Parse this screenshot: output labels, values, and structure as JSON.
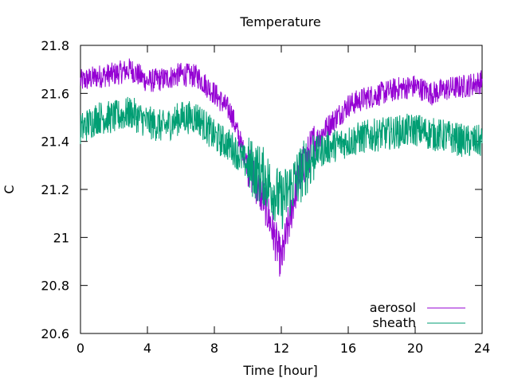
{
  "chart_data": {
    "type": "line",
    "title": "Temperature",
    "xlabel": "Time [hour]",
    "ylabel": "C",
    "xlim": [
      0,
      24
    ],
    "ylim": [
      20.6,
      21.8
    ],
    "x_ticks": [
      0,
      4,
      8,
      12,
      16,
      20,
      24
    ],
    "x_tick_labels": [
      "0",
      "4",
      "8",
      "12",
      "16",
      "20",
      "24"
    ],
    "y_ticks": [
      20.6,
      20.8,
      21.0,
      21.2,
      21.4,
      21.6,
      21.8
    ],
    "y_tick_labels": [
      "20.6",
      "20.8",
      "21",
      "21.2",
      "21.4",
      "21.6",
      "21.8"
    ],
    "grid": false,
    "legend_position": "bottom-right",
    "series": [
      {
        "name": "aerosol",
        "color": "#9400d3",
        "x": [
          0,
          1,
          2,
          3,
          4,
          5,
          6,
          7,
          8,
          9,
          10,
          11,
          12,
          13,
          14,
          15,
          16,
          17,
          18,
          19,
          20,
          21,
          22,
          23,
          24
        ],
        "y": [
          21.65,
          21.67,
          21.68,
          21.7,
          21.65,
          21.66,
          21.68,
          21.67,
          21.6,
          21.52,
          21.3,
          21.15,
          20.9,
          21.25,
          21.4,
          21.48,
          21.55,
          21.58,
          21.6,
          21.62,
          21.63,
          21.6,
          21.62,
          21.63,
          21.65
        ],
        "noise": 0.05
      },
      {
        "name": "sheath",
        "color": "#009e73",
        "x": [
          0,
          1,
          2,
          3,
          4,
          5,
          6,
          7,
          8,
          9,
          10,
          11,
          12,
          13,
          14,
          15,
          16,
          17,
          18,
          19,
          20,
          21,
          22,
          23,
          24
        ],
        "y": [
          21.45,
          21.5,
          21.5,
          21.52,
          21.48,
          21.46,
          21.5,
          21.5,
          21.42,
          21.38,
          21.3,
          21.25,
          21.15,
          21.25,
          21.35,
          21.38,
          21.4,
          21.42,
          21.43,
          21.44,
          21.45,
          21.43,
          21.42,
          21.4,
          21.4
        ],
        "noise": 0.07
      }
    ]
  }
}
